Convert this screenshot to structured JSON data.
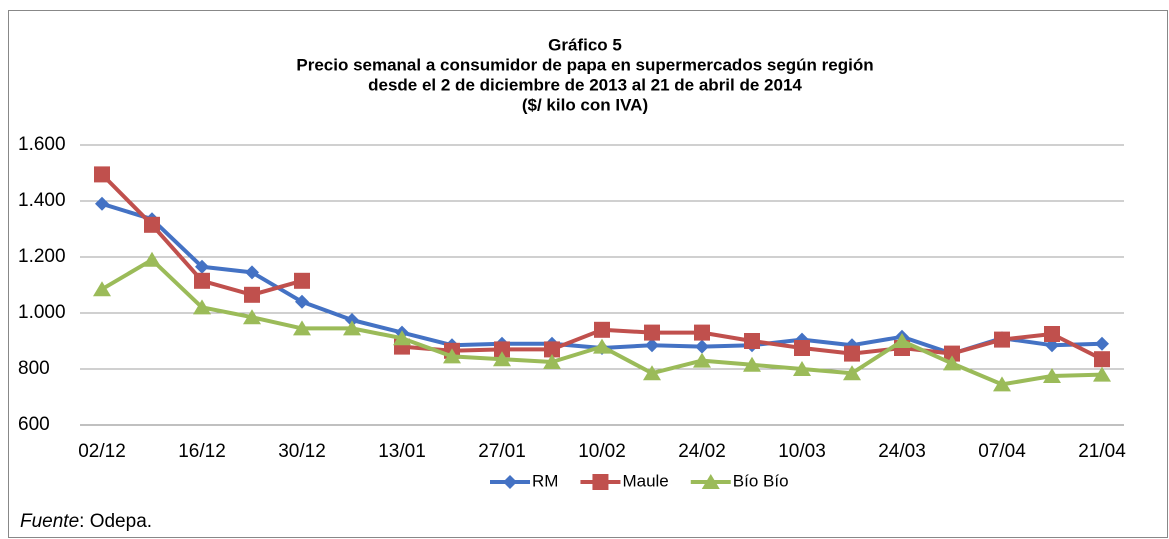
{
  "chart_data": {
    "type": "line",
    "title": "Gráfico 5",
    "subtitle": [
      "Precio semanal a consumidor de papa en supermercados según región",
      "desde el 2 de diciembre de 2013  al 21 de abril de 2014",
      "($/ kilo con IVA)"
    ],
    "categories": [
      "02/12",
      null,
      "16/12",
      null,
      "30/12",
      null,
      "13/01",
      null,
      "27/01",
      null,
      "10/02",
      null,
      "24/02",
      null,
      "10/03",
      null,
      "24/03",
      null,
      "07/04",
      null,
      "21/04"
    ],
    "series": [
      {
        "name": "RM",
        "color": "#4472c4",
        "marker": "diamond",
        "values": [
          1390,
          1335,
          1165,
          1145,
          1040,
          975,
          930,
          885,
          890,
          890,
          875,
          885,
          880,
          885,
          905,
          885,
          915,
          855,
          910,
          885,
          890
        ]
      },
      {
        "name": "Maule",
        "color": "#c0504d",
        "marker": "square",
        "values": [
          1495,
          1315,
          1115,
          1065,
          1115,
          null,
          880,
          865,
          870,
          870,
          940,
          930,
          930,
          900,
          875,
          855,
          875,
          855,
          905,
          925,
          835
        ]
      },
      {
        "name": "Bío Bío",
        "color": "#9bbb59",
        "marker": "triangle",
        "values": [
          1085,
          1190,
          1020,
          985,
          945,
          945,
          910,
          845,
          835,
          825,
          880,
          785,
          830,
          815,
          800,
          785,
          900,
          820,
          745,
          775,
          780
        ]
      }
    ],
    "ylim": [
      600,
      1600
    ],
    "yticks": [
      600,
      800,
      {
        "value": 1000,
        "label": "1.000"
      },
      {
        "value": 1200,
        "label": "1.200"
      },
      {
        "value": 1400,
        "label": "1.400"
      },
      {
        "value": 1600,
        "label": "1.600"
      }
    ],
    "grid": true,
    "legend": "bottom",
    "source_label": "Fuente",
    "source_text": ": Odepa."
  }
}
